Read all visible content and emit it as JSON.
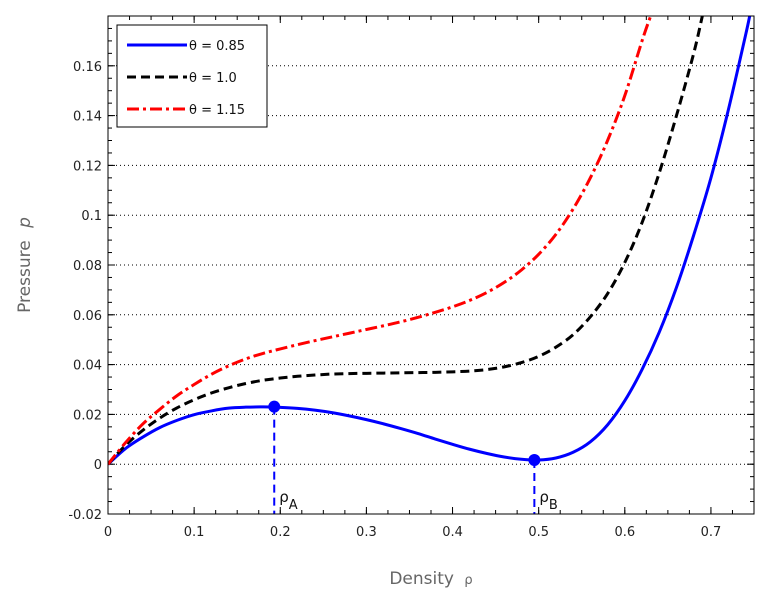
{
  "chart_data": {
    "type": "line",
    "title": "",
    "xlabel": "Density",
    "xlabel_symbol": "ρ",
    "ylabel": "Pressure",
    "ylabel_symbol": "p",
    "xlim": [
      0,
      0.75
    ],
    "ylim": [
      -0.02,
      0.18
    ],
    "xticks": [
      0,
      0.1,
      0.2,
      0.3,
      0.4,
      0.5,
      0.6,
      0.7
    ],
    "xtick_labels": [
      "0",
      "0.1",
      "0.2",
      "0.3",
      "0.4",
      "0.5",
      "0.6",
      "0.7"
    ],
    "yticks": [
      -0.02,
      0,
      0.02,
      0.04,
      0.06,
      0.08,
      0.1,
      0.12,
      0.14,
      0.16
    ],
    "ytick_labels": [
      "-0.02",
      "0",
      "0.02",
      "0.04",
      "0.06",
      "0.08",
      "0.1",
      "0.12",
      "0.14",
      "0.16"
    ],
    "grid": "horizontal dotted",
    "legend_position": "top-left",
    "series": [
      {
        "name": "θ = 0.85",
        "color": "#0000ff",
        "style": "solid",
        "x": [
          0,
          0.02,
          0.04,
          0.06,
          0.08,
          0.1,
          0.12,
          0.14,
          0.16,
          0.18,
          0.2,
          0.22,
          0.24,
          0.26,
          0.28,
          0.3,
          0.32,
          0.34,
          0.36,
          0.38,
          0.4,
          0.42,
          0.44,
          0.46,
          0.48,
          0.5,
          0.52,
          0.54,
          0.56,
          0.58,
          0.6,
          0.62,
          0.64,
          0.66,
          0.68,
          0.7,
          0.72,
          0.74,
          0.745
        ],
        "y": [
          0,
          0.0062,
          0.0108,
          0.0147,
          0.0176,
          0.0199,
          0.0214,
          0.0225,
          0.0229,
          0.023,
          0.0228,
          0.0224,
          0.0217,
          0.0207,
          0.0194,
          0.0179,
          0.0162,
          0.0143,
          0.0123,
          0.0101,
          0.008,
          0.006,
          0.0043,
          0.0029,
          0.002,
          0.0017,
          0.0025,
          0.0048,
          0.009,
          0.0158,
          0.0255,
          0.038,
          0.053,
          0.071,
          0.092,
          0.115,
          0.142,
          0.172,
          0.18
        ]
      },
      {
        "name": "θ = 1.0",
        "color": "#000000",
        "style": "dashed",
        "x": [
          0,
          0.02,
          0.04,
          0.06,
          0.08,
          0.1,
          0.12,
          0.14,
          0.16,
          0.18,
          0.2,
          0.22,
          0.24,
          0.26,
          0.28,
          0.3,
          0.32,
          0.34,
          0.36,
          0.38,
          0.4,
          0.42,
          0.44,
          0.46,
          0.48,
          0.5,
          0.52,
          0.54,
          0.56,
          0.58,
          0.6,
          0.62,
          0.64,
          0.66,
          0.68,
          0.69
        ],
        "y": [
          0,
          0.0075,
          0.0135,
          0.0185,
          0.0226,
          0.0259,
          0.0286,
          0.0307,
          0.0324,
          0.0337,
          0.0346,
          0.0353,
          0.0358,
          0.0362,
          0.0364,
          0.0365,
          0.0366,
          0.0367,
          0.0368,
          0.0369,
          0.0371,
          0.0374,
          0.038,
          0.0391,
          0.0408,
          0.0433,
          0.047,
          0.052,
          0.0592,
          0.0685,
          0.081,
          0.097,
          0.117,
          0.14,
          0.165,
          0.18
        ]
      },
      {
        "name": "θ = 1.15",
        "color": "#ff0000",
        "style": "dashdot",
        "x": [
          0,
          0.02,
          0.04,
          0.06,
          0.08,
          0.1,
          0.12,
          0.14,
          0.16,
          0.18,
          0.2,
          0.22,
          0.24,
          0.26,
          0.28,
          0.3,
          0.32,
          0.34,
          0.36,
          0.38,
          0.4,
          0.42,
          0.44,
          0.46,
          0.48,
          0.5,
          0.52,
          0.54,
          0.56,
          0.58,
          0.6,
          0.62,
          0.63
        ],
        "y": [
          0,
          0.0085,
          0.016,
          0.022,
          0.0275,
          0.032,
          0.0361,
          0.0395,
          0.0423,
          0.0445,
          0.0463,
          0.048,
          0.0496,
          0.0511,
          0.0526,
          0.0541,
          0.0556,
          0.0572,
          0.059,
          0.061,
          0.0632,
          0.0658,
          0.069,
          0.073,
          0.078,
          0.0843,
          0.0923,
          0.1025,
          0.115,
          0.13,
          0.148,
          0.17,
          0.18
        ]
      }
    ],
    "markers": [
      {
        "label": "ρ",
        "subscript": "A",
        "x": 0.193,
        "y": 0.0231,
        "color": "#0000ff"
      },
      {
        "label": "ρ",
        "subscript": "B",
        "x": 0.495,
        "y": 0.0017,
        "color": "#0000ff"
      }
    ]
  }
}
